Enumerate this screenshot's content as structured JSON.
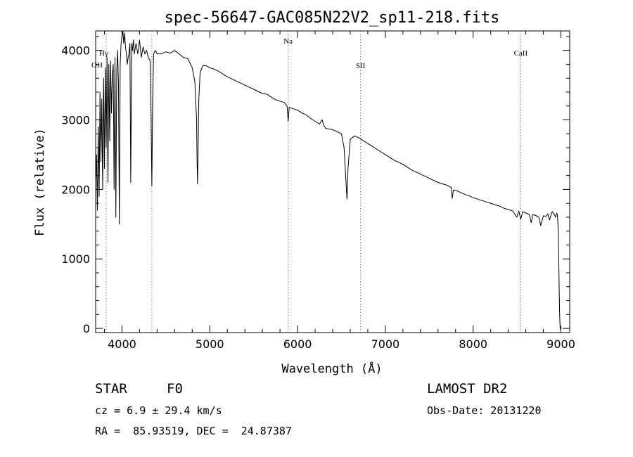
{
  "chart_data": {
    "type": "line",
    "title": "spec-56647-GAC085N22V2_sp11-218.fits",
    "xlabel": "Wavelength (Å)",
    "ylabel": "Flux (relative)",
    "xlim": [
      3700,
      9100
    ],
    "ylim": [
      -60,
      4280
    ],
    "xticks": [
      4000,
      5000,
      6000,
      7000,
      8000,
      9000
    ],
    "yticks": [
      0,
      1000,
      2000,
      3000,
      4000
    ],
    "grid": false,
    "series": [
      {
        "color": "#000000",
        "x": [
          3700,
          3710,
          3720,
          3730,
          3740,
          3750,
          3760,
          3770,
          3780,
          3790,
          3800,
          3810,
          3820,
          3830,
          3840,
          3850,
          3860,
          3870,
          3880,
          3890,
          3900,
          3910,
          3920,
          3930,
          3940,
          3950,
          3960,
          3970,
          3980,
          3990,
          4000,
          4010,
          4020,
          4030,
          4040,
          4050,
          4060,
          4070,
          4080,
          4090,
          4100,
          4110,
          4120,
          4130,
          4140,
          4160,
          4180,
          4200,
          4220,
          4240,
          4260,
          4280,
          4300,
          4320,
          4330,
          4340,
          4350,
          4360,
          4380,
          4400,
          4450,
          4500,
          4550,
          4600,
          4650,
          4700,
          4750,
          4800,
          4830,
          4850,
          4855,
          4861,
          4867,
          4875,
          4890,
          4920,
          4960,
          5000,
          5050,
          5100,
          5150,
          5200,
          5250,
          5300,
          5350,
          5400,
          5450,
          5500,
          5550,
          5600,
          5650,
          5700,
          5750,
          5800,
          5850,
          5880,
          5893,
          5905,
          5950,
          6000,
          6050,
          6100,
          6150,
          6200,
          6250,
          6280,
          6300,
          6320,
          6350,
          6400,
          6450,
          6500,
          6530,
          6550,
          6563,
          6575,
          6600,
          6650,
          6700,
          6750,
          6800,
          6850,
          6900,
          6950,
          7000,
          7050,
          7100,
          7150,
          7200,
          7250,
          7300,
          7350,
          7400,
          7450,
          7500,
          7550,
          7600,
          7650,
          7700,
          7750,
          7762,
          7775,
          7800,
          7850,
          7900,
          7950,
          8000,
          8050,
          8100,
          8150,
          8200,
          8250,
          8300,
          8350,
          8400,
          8450,
          8498,
          8520,
          8542,
          8565,
          8600,
          8640,
          8662,
          8680,
          8720,
          8750,
          8770,
          8800,
          8830,
          8850,
          8870,
          8900,
          8920,
          8940,
          8950,
          8960,
          8970,
          8980,
          8985,
          8990,
          9000
        ],
        "y": [
          2100,
          2500,
          1700,
          2900,
          1900,
          3400,
          2400,
          3300,
          2000,
          3600,
          2300,
          3750,
          2600,
          3900,
          2100,
          3800,
          2700,
          3850,
          3100,
          3650,
          3800,
          2000,
          3900,
          1600,
          3700,
          4000,
          3500,
          1500,
          3800,
          4100,
          4200,
          4300,
          4100,
          4250,
          4050,
          3950,
          3800,
          3900,
          3950,
          4100,
          2100,
          4100,
          4000,
          4150,
          3950,
          4100,
          3950,
          4150,
          3900,
          4050,
          3950,
          4000,
          3900,
          3850,
          3200,
          2050,
          3300,
          3950,
          4000,
          3950,
          3950,
          3980,
          3960,
          4000,
          3950,
          3900,
          3880,
          3750,
          3550,
          3000,
          2400,
          2080,
          2600,
          3300,
          3680,
          3780,
          3780,
          3750,
          3730,
          3700,
          3660,
          3620,
          3590,
          3560,
          3530,
          3500,
          3470,
          3440,
          3410,
          3380,
          3370,
          3330,
          3290,
          3270,
          3250,
          3200,
          2980,
          3180,
          3160,
          3140,
          3100,
          3070,
          3020,
          2980,
          2940,
          3000,
          2920,
          2880,
          2870,
          2860,
          2830,
          2800,
          2600,
          2150,
          1860,
          2300,
          2720,
          2770,
          2740,
          2700,
          2660,
          2620,
          2580,
          2540,
          2500,
          2460,
          2420,
          2390,
          2360,
          2320,
          2280,
          2250,
          2220,
          2190,
          2160,
          2130,
          2100,
          2080,
          2060,
          2030,
          1870,
          1990,
          1990,
          1960,
          1930,
          1910,
          1880,
          1860,
          1840,
          1820,
          1800,
          1780,
          1760,
          1730,
          1710,
          1690,
          1600,
          1690,
          1570,
          1680,
          1660,
          1640,
          1520,
          1640,
          1620,
          1600,
          1480,
          1620,
          1610,
          1650,
          1560,
          1680,
          1650,
          1600,
          1660,
          1640,
          1400,
          600,
          250,
          10,
          -20
        ]
      }
    ],
    "line_markers": [
      {
        "label": "OH",
        "x": 3820
      },
      {
        "label": "Hγ",
        "x": 4340
      },
      {
        "label": "Na",
        "x": 5893
      },
      {
        "label": "SII",
        "x": 6717
      },
      {
        "label": "CaII",
        "x": 8542
      }
    ]
  },
  "info": {
    "class_label": "STAR",
    "subclass": "F0",
    "survey": "LAMOST DR2",
    "cz": "cz = 6.9 ± 29.4 km/s",
    "obs_date": "Obs-Date: 20131220",
    "coords": "RA =  85.93519, DEC =  24.87387"
  }
}
